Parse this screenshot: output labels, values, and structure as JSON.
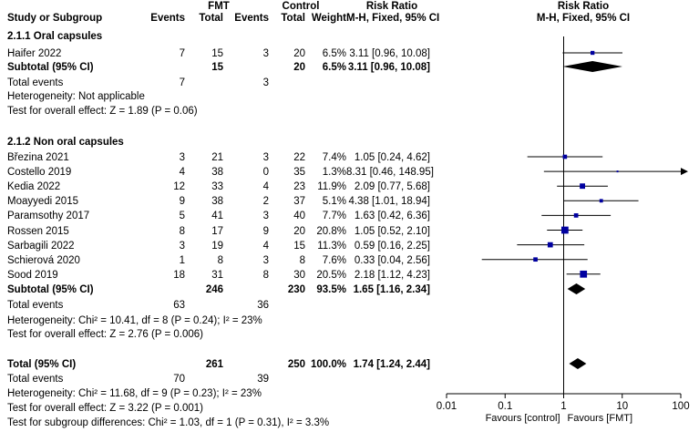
{
  "header": {
    "study_col": "Study or Subgroup",
    "fmt_group": "FMT",
    "control_group": "Control",
    "events": "Events",
    "total": "Total",
    "weight": "Weight",
    "rr_title": "Risk Ratio",
    "rr_method": "M-H, Fixed, 95% CI",
    "plot_title": "Risk Ratio",
    "plot_method": "M-H, Fixed, 95% CI"
  },
  "subgroups": [
    {
      "title": "2.1.1 Oral capsules",
      "studies": [
        {
          "name": "Haifer 2022",
          "e1": "7",
          "n1": "15",
          "e2": "3",
          "n2": "20",
          "weight": "6.5%",
          "ci": "3.11 [0.96, 10.08]"
        }
      ],
      "subtotal": {
        "label": "Subtotal (95% CI)",
        "n1": "15",
        "n2": "20",
        "weight": "6.5%",
        "ci": "3.11 [0.96, 10.08]"
      },
      "total_events": {
        "label": "Total events",
        "e1": "7",
        "e2": "3"
      },
      "heterogeneity": "Heterogeneity: Not applicable",
      "overall_effect": "Test for overall effect: Z = 1.89 (P = 0.06)"
    },
    {
      "title": "2.1.2 Non oral capsules",
      "studies": [
        {
          "name": "Březina 2021",
          "e1": "3",
          "n1": "21",
          "e2": "3",
          "n2": "22",
          "weight": "7.4%",
          "ci": "1.05 [0.24, 4.62]"
        },
        {
          "name": "Costello 2019",
          "e1": "4",
          "n1": "38",
          "e2": "0",
          "n2": "35",
          "weight": "1.3%",
          "ci": "8.31 [0.46, 148.95]"
        },
        {
          "name": "Kedia 2022",
          "e1": "12",
          "n1": "33",
          "e2": "4",
          "n2": "23",
          "weight": "11.9%",
          "ci": "2.09 [0.77, 5.68]"
        },
        {
          "name": "Moayyedi 2015",
          "e1": "9",
          "n1": "38",
          "e2": "2",
          "n2": "37",
          "weight": "5.1%",
          "ci": "4.38 [1.01, 18.94]"
        },
        {
          "name": "Paramsothy 2017",
          "e1": "5",
          "n1": "41",
          "e2": "3",
          "n2": "40",
          "weight": "7.7%",
          "ci": "1.63 [0.42, 6.36]"
        },
        {
          "name": "Rossen 2015",
          "e1": "8",
          "n1": "17",
          "e2": "9",
          "n2": "20",
          "weight": "20.8%",
          "ci": "1.05 [0.52, 2.10]"
        },
        {
          "name": "Sarbagili 2022",
          "e1": "3",
          "n1": "19",
          "e2": "4",
          "n2": "15",
          "weight": "11.3%",
          "ci": "0.59 [0.16, 2.25]"
        },
        {
          "name": "Schierová 2020",
          "e1": "1",
          "n1": "8",
          "e2": "3",
          "n2": "8",
          "weight": "7.6%",
          "ci": "0.33 [0.04, 2.56]"
        },
        {
          "name": "Sood 2019",
          "e1": "18",
          "n1": "31",
          "e2": "8",
          "n2": "30",
          "weight": "20.5%",
          "ci": "2.18 [1.12, 4.23]"
        }
      ],
      "subtotal": {
        "label": "Subtotal (95% CI)",
        "n1": "246",
        "n2": "230",
        "weight": "93.5%",
        "ci": "1.65 [1.16, 2.34]"
      },
      "total_events": {
        "label": "Total events",
        "e1": "63",
        "e2": "36"
      },
      "heterogeneity": "Heterogeneity: Chi² = 10.41, df = 8 (P = 0.24); I² = 23%",
      "overall_effect": "Test for overall effect: Z = 2.76 (P = 0.006)"
    }
  ],
  "overall": {
    "label": "Total (95% CI)",
    "n1": "261",
    "n2": "250",
    "weight": "100.0%",
    "ci": "1.74 [1.24, 2.44]",
    "total_events": {
      "label": "Total events",
      "e1": "70",
      "e2": "39"
    },
    "heterogeneity": "Heterogeneity: Chi² = 11.68, df = 9 (P = 0.23); I² = 23%",
    "overall_effect": "Test for overall effect: Z = 3.22 (P = 0.001)",
    "subgroup_diff": "Test for subgroup differences: Chi² = 1.03, df = 1 (P = 0.31), I² = 3.3%"
  },
  "chart_data": {
    "type": "forest",
    "scale": "log",
    "xlim": [
      0.01,
      100
    ],
    "ticks": [
      "0.01",
      "0.1",
      "1",
      "10",
      "100"
    ],
    "tick_values": [
      0.01,
      0.1,
      1,
      10,
      100
    ],
    "null_value": 1,
    "xlabel_left": "Favours [control]",
    "xlabel_right": "Favours [FMT]",
    "marker_color": "#0000a0",
    "studies": [
      {
        "name": "Haifer 2022",
        "rr": 3.11,
        "lo": 0.96,
        "hi": 10.08,
        "weight": 6.5
      },
      {
        "name": "Březina 2021",
        "rr": 1.05,
        "lo": 0.24,
        "hi": 4.62,
        "weight": 7.4
      },
      {
        "name": "Costello 2019",
        "rr": 8.31,
        "lo": 0.46,
        "hi": 148.95,
        "weight": 1.3
      },
      {
        "name": "Kedia 2022",
        "rr": 2.09,
        "lo": 0.77,
        "hi": 5.68,
        "weight": 11.9
      },
      {
        "name": "Moayyedi 2015",
        "rr": 4.38,
        "lo": 1.01,
        "hi": 18.94,
        "weight": 5.1
      },
      {
        "name": "Paramsothy 2017",
        "rr": 1.63,
        "lo": 0.42,
        "hi": 6.36,
        "weight": 7.7
      },
      {
        "name": "Rossen 2015",
        "rr": 1.05,
        "lo": 0.52,
        "hi": 2.1,
        "weight": 20.8
      },
      {
        "name": "Sarbagili 2022",
        "rr": 0.59,
        "lo": 0.16,
        "hi": 2.25,
        "weight": 11.3
      },
      {
        "name": "Schierová 2020",
        "rr": 0.33,
        "lo": 0.04,
        "hi": 2.56,
        "weight": 7.6
      },
      {
        "name": "Sood 2019",
        "rr": 2.18,
        "lo": 1.12,
        "hi": 4.23,
        "weight": 20.5
      }
    ],
    "pooled": [
      {
        "name": "Subtotal (95% CI) 2.1.1",
        "rr": 3.11,
        "lo": 0.96,
        "hi": 10.08
      },
      {
        "name": "Subtotal (95% CI) 2.1.2",
        "rr": 1.65,
        "lo": 1.16,
        "hi": 2.34
      },
      {
        "name": "Total (95% CI)",
        "rr": 1.74,
        "lo": 1.24,
        "hi": 2.44
      }
    ]
  }
}
